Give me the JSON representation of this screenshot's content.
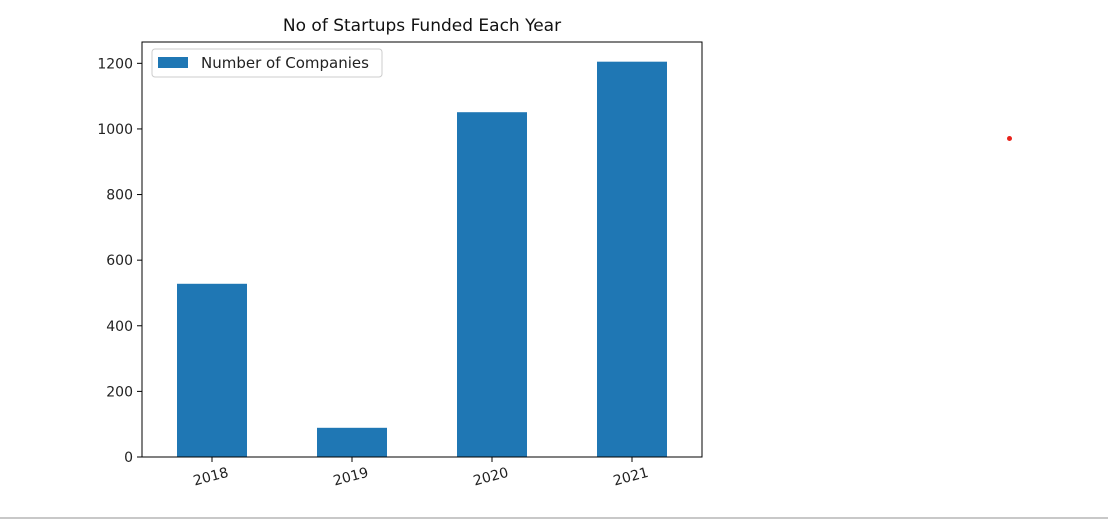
{
  "chart_data": {
    "type": "bar",
    "title": "No of Startups Funded Each Year",
    "xlabel": "",
    "ylabel": "",
    "categories": [
      "2018",
      "2019",
      "2020",
      "2021"
    ],
    "series": [
      {
        "name": "Number of Companies",
        "values": [
          528,
          89,
          1051,
          1205
        ],
        "color": "#1f77b4"
      }
    ],
    "ylim": [
      0,
      1265
    ],
    "yticks": [
      0,
      200,
      400,
      600,
      800,
      1000,
      1200
    ],
    "xtick_rotation_deg": -15,
    "grid": false,
    "legend_position": "top-left"
  },
  "annotation": {
    "dot_color": "#e8221b"
  }
}
